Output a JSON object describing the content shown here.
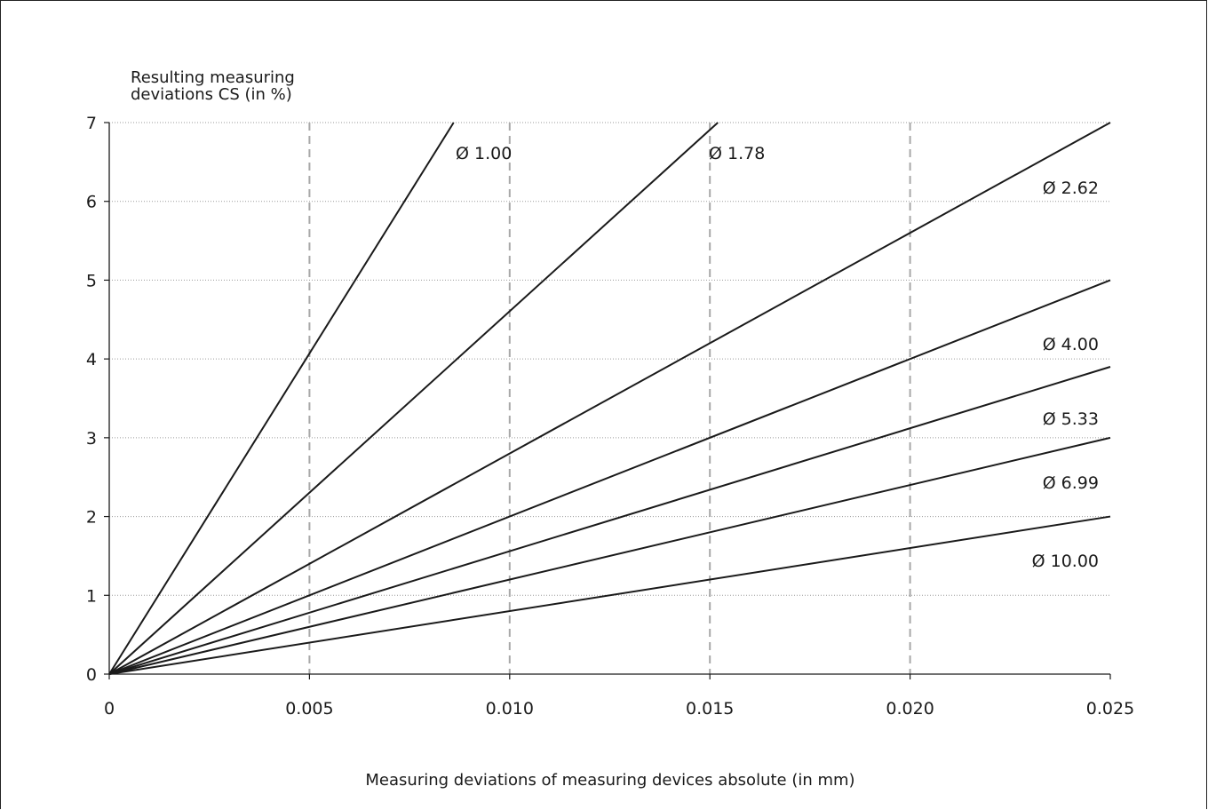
{
  "chart_data": {
    "type": "line",
    "title": "",
    "ylabel_lines": [
      "Resulting measuring",
      "deviations CS (in %)"
    ],
    "xlabel": "Measuring deviations of measuring devices absolute (in mm)",
    "xlim": [
      0,
      0.025
    ],
    "ylim": [
      0,
      7
    ],
    "x_ticks": [
      "0",
      "0.005",
      "0.010",
      "0.015",
      "0.020",
      "0.025"
    ],
    "y_ticks": [
      "0",
      "1",
      "2",
      "3",
      "4",
      "5",
      "6",
      "7"
    ],
    "grid": {
      "horizontal": "dotted",
      "vertical": "dashed"
    },
    "series": [
      {
        "name": "Ø 1.00",
        "diameter_mm": 1.0,
        "slope_percent_per_mm": 813,
        "x": [
          0,
          0.0086
        ],
        "y": [
          0,
          7
        ]
      },
      {
        "name": "Ø 1.78",
        "diameter_mm": 1.78,
        "slope_percent_per_mm": 462,
        "x": [
          0,
          0.0152
        ],
        "y": [
          0,
          7
        ]
      },
      {
        "name": "Ø 2.62",
        "diameter_mm": 2.62,
        "slope_percent_per_mm": 280,
        "x": [
          0,
          0.025
        ],
        "y": [
          0,
          7
        ]
      },
      {
        "name": "Ø 4.00",
        "diameter_mm": 4.0,
        "slope_percent_per_mm": 200,
        "x": [
          0,
          0.025
        ],
        "y": [
          0,
          5
        ]
      },
      {
        "name": "Ø 5.33",
        "diameter_mm": 5.33,
        "slope_percent_per_mm": 156,
        "x": [
          0,
          0.025
        ],
        "y": [
          0,
          3.9
        ]
      },
      {
        "name": "Ø 6.99",
        "diameter_mm": 6.99,
        "slope_percent_per_mm": 120,
        "x": [
          0,
          0.025
        ],
        "y": [
          0,
          3.0
        ]
      },
      {
        "name": "Ø 10.00",
        "diameter_mm": 10.0,
        "slope_percent_per_mm": 80,
        "x": [
          0,
          0.025
        ],
        "y": [
          0,
          2.0
        ]
      }
    ],
    "colors": {
      "line": "#1a1a1a",
      "dashed_grid": "#a8a8a8",
      "dotted_grid": "#9a9a9a"
    }
  }
}
